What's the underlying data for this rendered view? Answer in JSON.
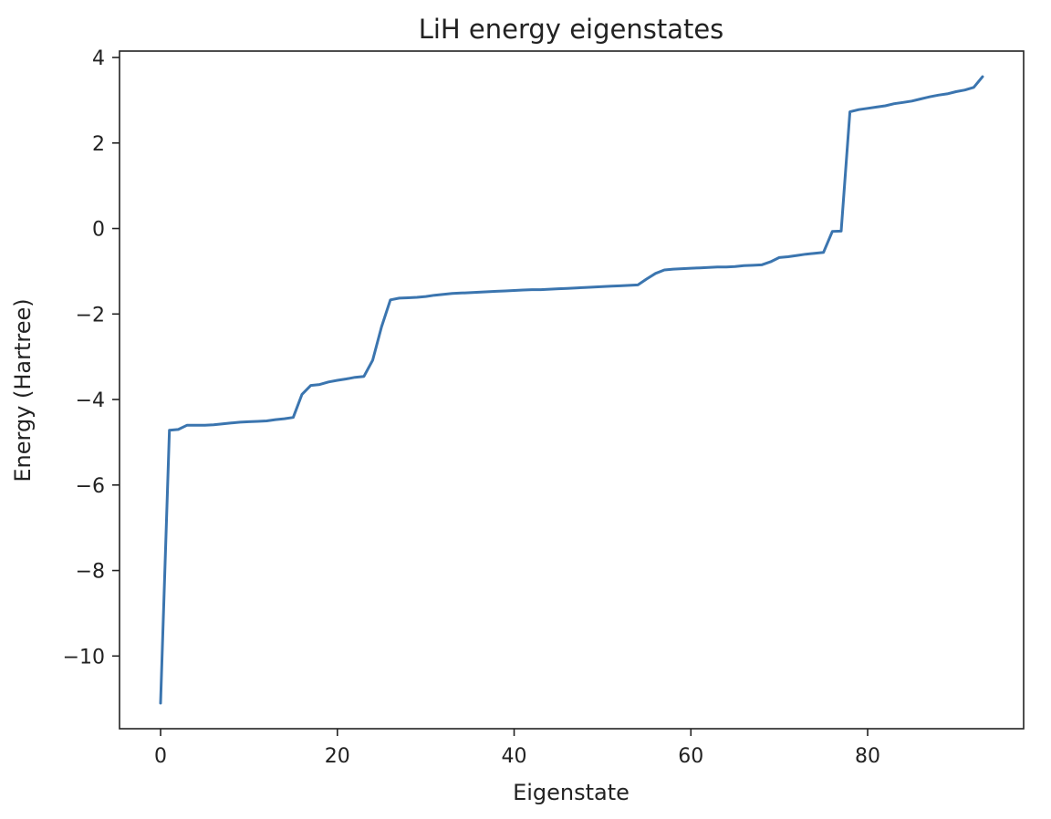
{
  "chart_data": {
    "type": "line",
    "title": "LiH energy eigenstates",
    "xlabel": "Eigenstate",
    "ylabel": "Energy (Hartree)",
    "xlim": [
      -4.65,
      97.65
    ],
    "ylim": [
      -11.7,
      4.15
    ],
    "xticks": [
      0,
      20,
      40,
      60,
      80
    ],
    "yticks": [
      4,
      2,
      0,
      -2,
      -4,
      -6,
      -8,
      -10
    ],
    "xtick_labels": [
      "0",
      "20",
      "40",
      "60",
      "80"
    ],
    "ytick_labels": [
      "4",
      "2",
      "0",
      "−2",
      "−4",
      "−6",
      "−8",
      "−10"
    ],
    "grid": false,
    "line_color": "#3b75af",
    "series": [
      {
        "x": [
          0,
          1,
          2,
          3,
          4,
          5,
          6,
          7,
          8,
          9,
          10,
          11,
          12,
          13,
          14,
          15,
          16,
          17,
          18,
          19,
          20,
          21,
          22,
          23,
          24,
          25,
          26,
          27,
          28,
          29,
          30,
          31,
          32,
          33,
          34,
          35,
          36,
          37,
          38,
          39,
          40,
          41,
          42,
          43,
          44,
          45,
          46,
          47,
          48,
          49,
          50,
          51,
          52,
          53,
          54,
          55,
          56,
          57,
          58,
          59,
          60,
          61,
          62,
          63,
          64,
          65,
          66,
          67,
          68,
          69,
          70,
          71,
          72,
          73,
          74,
          75,
          76,
          77,
          78,
          79,
          80,
          81,
          82,
          83,
          84,
          85,
          86,
          87,
          88,
          89,
          90,
          91,
          92,
          93
        ],
        "values": [
          -11.1,
          -4.72,
          -4.7,
          -4.6,
          -4.6,
          -4.6,
          -4.59,
          -4.57,
          -4.55,
          -4.53,
          -4.52,
          -4.51,
          -4.5,
          -4.47,
          -4.45,
          -4.42,
          -3.88,
          -3.67,
          -3.65,
          -3.59,
          -3.55,
          -3.52,
          -3.48,
          -3.46,
          -3.08,
          -2.3,
          -1.67,
          -1.63,
          -1.62,
          -1.61,
          -1.59,
          -1.56,
          -1.54,
          -1.52,
          -1.51,
          -1.5,
          -1.49,
          -1.48,
          -1.47,
          -1.46,
          -1.45,
          -1.44,
          -1.43,
          -1.43,
          -1.42,
          -1.41,
          -1.4,
          -1.39,
          -1.38,
          -1.37,
          -1.36,
          -1.35,
          -1.34,
          -1.33,
          -1.32,
          -1.18,
          -1.05,
          -0.97,
          -0.95,
          -0.94,
          -0.93,
          -0.92,
          -0.91,
          -0.9,
          -0.9,
          -0.89,
          -0.87,
          -0.86,
          -0.85,
          -0.78,
          -0.68,
          -0.66,
          -0.63,
          -0.6,
          -0.58,
          -0.56,
          -0.07,
          -0.06,
          2.73,
          2.78,
          2.81,
          2.84,
          2.87,
          2.92,
          2.95,
          2.98,
          3.03,
          3.08,
          3.12,
          3.15,
          3.2,
          3.24,
          3.3,
          3.55
        ]
      }
    ]
  }
}
